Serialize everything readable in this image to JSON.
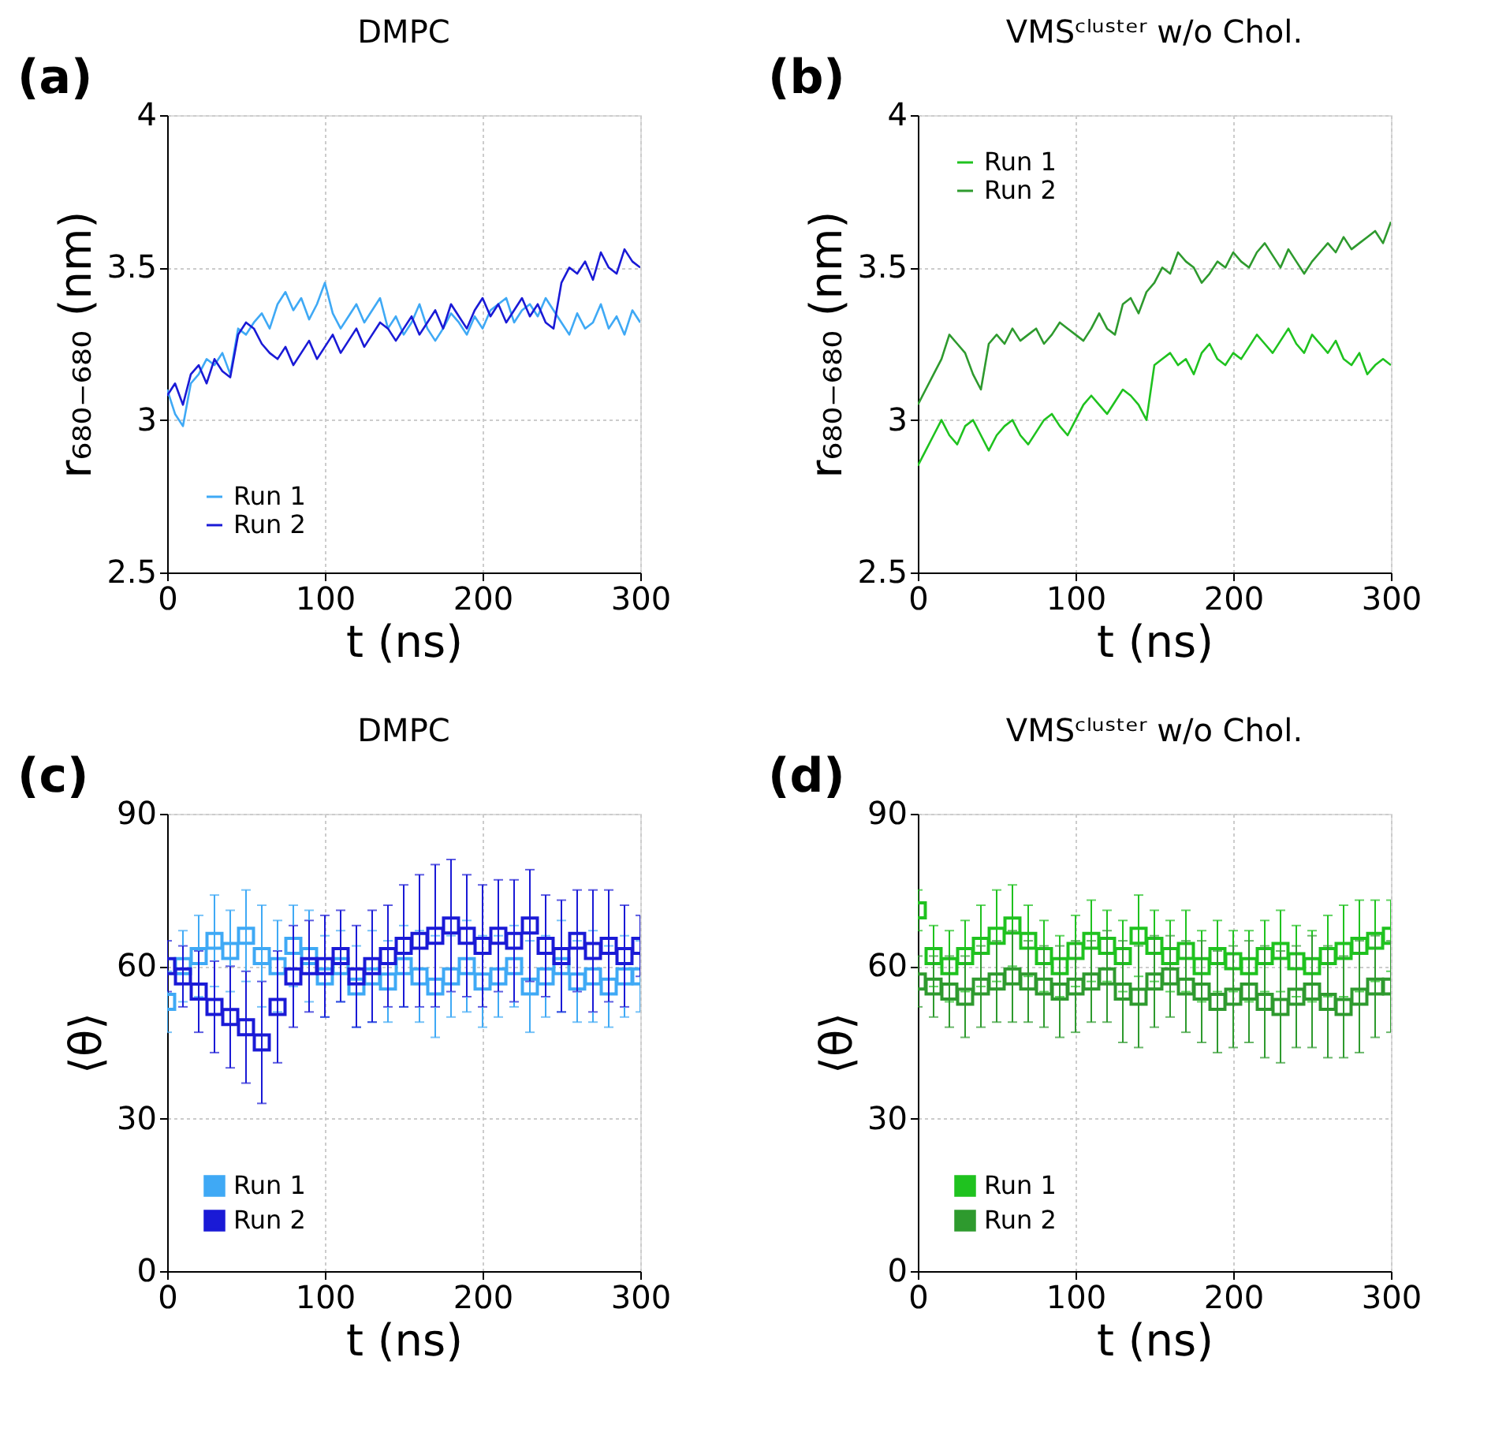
{
  "chart_data": [
    {
      "type": "line",
      "title": "DMPC",
      "xlabel": "t (ns)",
      "ylabel": "r₆₈₀₋₆₈₀ (nm)",
      "annotations": [
        "(a)"
      ],
      "xlim": [
        0,
        300
      ],
      "xticks": [
        0,
        100,
        200,
        300
      ],
      "ylim": [
        2.5,
        4
      ],
      "yticks": [
        2.5,
        3,
        3.5,
        4
      ],
      "grid": true,
      "legend": "bottom left",
      "line_style": "solid",
      "x": [
        0,
        5,
        10,
        15,
        20,
        25,
        30,
        35,
        40,
        45,
        50,
        55,
        60,
        65,
        70,
        75,
        80,
        85,
        90,
        95,
        100,
        105,
        110,
        115,
        120,
        125,
        130,
        135,
        140,
        145,
        150,
        155,
        160,
        165,
        170,
        175,
        180,
        185,
        190,
        195,
        200,
        205,
        210,
        215,
        220,
        225,
        230,
        235,
        240,
        245,
        250,
        255,
        260,
        265,
        270,
        275,
        280,
        285,
        290,
        295,
        300
      ],
      "series": [
        {
          "name": "Run 1",
          "color": "#3fa9f5",
          "values": [
            3.1,
            3.02,
            2.98,
            3.12,
            3.15,
            3.2,
            3.18,
            3.22,
            3.15,
            3.3,
            3.28,
            3.32,
            3.35,
            3.3,
            3.38,
            3.42,
            3.36,
            3.4,
            3.33,
            3.38,
            3.45,
            3.35,
            3.3,
            3.34,
            3.38,
            3.32,
            3.36,
            3.4,
            3.3,
            3.34,
            3.28,
            3.32,
            3.38,
            3.3,
            3.26,
            3.3,
            3.35,
            3.32,
            3.28,
            3.34,
            3.3,
            3.36,
            3.38,
            3.4,
            3.32,
            3.36,
            3.38,
            3.34,
            3.4,
            3.36,
            3.32,
            3.28,
            3.35,
            3.3,
            3.32,
            3.38,
            3.3,
            3.34,
            3.28,
            3.36,
            3.32
          ]
        },
        {
          "name": "Run 2",
          "color": "#1a1ad6",
          "values": [
            3.08,
            3.12,
            3.05,
            3.15,
            3.18,
            3.12,
            3.2,
            3.16,
            3.14,
            3.28,
            3.32,
            3.3,
            3.25,
            3.22,
            3.2,
            3.24,
            3.18,
            3.22,
            3.26,
            3.2,
            3.24,
            3.28,
            3.22,
            3.26,
            3.3,
            3.24,
            3.28,
            3.32,
            3.3,
            3.26,
            3.3,
            3.34,
            3.28,
            3.32,
            3.36,
            3.3,
            3.38,
            3.34,
            3.3,
            3.36,
            3.4,
            3.34,
            3.38,
            3.32,
            3.36,
            3.4,
            3.34,
            3.38,
            3.32,
            3.3,
            3.45,
            3.5,
            3.48,
            3.52,
            3.46,
            3.55,
            3.5,
            3.48,
            3.56,
            3.52,
            3.5
          ]
        }
      ]
    },
    {
      "type": "line",
      "title": "VMSᶜˡᵘˢᵗᵉʳ w/o Chol.",
      "xlabel": "t (ns)",
      "ylabel": "r₆₈₀₋₆₈₀ (nm)",
      "annotations": [
        "(b)"
      ],
      "xlim": [
        0,
        300
      ],
      "xticks": [
        0,
        100,
        200,
        300
      ],
      "ylim": [
        2.5,
        4
      ],
      "yticks": [
        2.5,
        3,
        3.5,
        4
      ],
      "grid": true,
      "legend": "top left",
      "line_style": "solid",
      "x": [
        0,
        5,
        10,
        15,
        20,
        25,
        30,
        35,
        40,
        45,
        50,
        55,
        60,
        65,
        70,
        75,
        80,
        85,
        90,
        95,
        100,
        105,
        110,
        115,
        120,
        125,
        130,
        135,
        140,
        145,
        150,
        155,
        160,
        165,
        170,
        175,
        180,
        185,
        190,
        195,
        200,
        205,
        210,
        215,
        220,
        225,
        230,
        235,
        240,
        245,
        250,
        255,
        260,
        265,
        270,
        275,
        280,
        285,
        290,
        295,
        300
      ],
      "series": [
        {
          "name": "Run 1",
          "color": "#1fc21f",
          "values": [
            2.85,
            2.9,
            2.95,
            3.0,
            2.95,
            2.92,
            2.98,
            3.0,
            2.95,
            2.9,
            2.95,
            2.98,
            3.0,
            2.95,
            2.92,
            2.96,
            3.0,
            3.02,
            2.98,
            2.95,
            3.0,
            3.05,
            3.08,
            3.05,
            3.02,
            3.06,
            3.1,
            3.08,
            3.05,
            3.0,
            3.18,
            3.2,
            3.22,
            3.18,
            3.2,
            3.15,
            3.22,
            3.25,
            3.2,
            3.18,
            3.22,
            3.2,
            3.24,
            3.28,
            3.25,
            3.22,
            3.26,
            3.3,
            3.25,
            3.22,
            3.28,
            3.25,
            3.22,
            3.26,
            3.2,
            3.18,
            3.22,
            3.15,
            3.18,
            3.2,
            3.18
          ]
        },
        {
          "name": "Run 2",
          "color": "#2e9a2e",
          "values": [
            3.05,
            3.1,
            3.15,
            3.2,
            3.28,
            3.25,
            3.22,
            3.15,
            3.1,
            3.25,
            3.28,
            3.25,
            3.3,
            3.26,
            3.28,
            3.3,
            3.25,
            3.28,
            3.32,
            3.3,
            3.28,
            3.26,
            3.3,
            3.35,
            3.3,
            3.28,
            3.38,
            3.4,
            3.35,
            3.42,
            3.45,
            3.5,
            3.48,
            3.55,
            3.52,
            3.5,
            3.45,
            3.48,
            3.52,
            3.5,
            3.55,
            3.52,
            3.5,
            3.55,
            3.58,
            3.54,
            3.5,
            3.56,
            3.52,
            3.48,
            3.52,
            3.55,
            3.58,
            3.55,
            3.6,
            3.56,
            3.58,
            3.6,
            3.62,
            3.58,
            3.65
          ]
        }
      ]
    },
    {
      "type": "scatter",
      "title": "DMPC",
      "xlabel": "t (ns)",
      "ylabel": "⟨θ⟩",
      "annotations": [
        "(c)"
      ],
      "xlim": [
        0,
        300
      ],
      "xticks": [
        0,
        100,
        200,
        300
      ],
      "ylim": [
        0,
        90
      ],
      "yticks": [
        0,
        30,
        60,
        90
      ],
      "grid": true,
      "legend": "bottom left",
      "marker": "square",
      "x": [
        0,
        10,
        20,
        30,
        40,
        50,
        60,
        70,
        80,
        90,
        100,
        110,
        120,
        130,
        140,
        150,
        160,
        170,
        180,
        190,
        200,
        210,
        220,
        230,
        240,
        250,
        260,
        270,
        280,
        290,
        300
      ],
      "series": [
        {
          "name": "Run 1",
          "color": "#3fa9f5",
          "values": [
            53,
            60,
            62,
            65,
            63,
            66,
            62,
            60,
            64,
            62,
            58,
            60,
            56,
            58,
            57,
            60,
            58,
            56,
            58,
            60,
            57,
            58,
            60,
            56,
            58,
            60,
            57,
            58,
            56,
            58,
            58
          ],
          "errors": [
            6,
            7,
            8,
            9,
            8,
            9,
            10,
            9,
            8,
            9,
            8,
            7,
            8,
            9,
            8,
            8,
            9,
            10,
            8,
            9,
            9,
            8,
            8,
            9,
            8,
            9,
            8,
            9,
            8,
            8,
            7
          ]
        },
        {
          "name": "Run 2",
          "color": "#1a1ad6",
          "values": [
            60,
            58,
            55,
            52,
            50,
            48,
            45,
            52,
            58,
            60,
            60,
            62,
            58,
            60,
            62,
            64,
            65,
            66,
            68,
            66,
            64,
            66,
            65,
            68,
            64,
            62,
            65,
            63,
            64,
            62,
            64
          ],
          "errors": [
            5,
            6,
            8,
            9,
            10,
            11,
            12,
            11,
            10,
            9,
            10,
            9,
            10,
            11,
            10,
            12,
            13,
            14,
            13,
            12,
            12,
            11,
            12,
            11,
            10,
            11,
            10,
            12,
            11,
            10,
            6
          ]
        }
      ]
    },
    {
      "type": "scatter",
      "title": "VMSᶜˡᵘˢᵗᵉʳ w/o Chol.",
      "xlabel": "t (ns)",
      "ylabel": "⟨θ⟩",
      "annotations": [
        "(d)"
      ],
      "xlim": [
        0,
        300
      ],
      "xticks": [
        0,
        100,
        200,
        300
      ],
      "ylim": [
        0,
        90
      ],
      "yticks": [
        0,
        30,
        60,
        90
      ],
      "grid": true,
      "legend": "bottom left",
      "marker": "square",
      "x": [
        0,
        10,
        20,
        30,
        40,
        50,
        60,
        70,
        80,
        90,
        100,
        110,
        120,
        130,
        140,
        150,
        160,
        170,
        180,
        190,
        200,
        210,
        220,
        230,
        240,
        250,
        260,
        270,
        280,
        290,
        300
      ],
      "series": [
        {
          "name": "Run 1",
          "color": "#1fc21f",
          "values": [
            71,
            62,
            60,
            62,
            64,
            66,
            68,
            65,
            62,
            60,
            63,
            65,
            64,
            62,
            66,
            64,
            62,
            63,
            60,
            62,
            61,
            60,
            62,
            63,
            61,
            60,
            62,
            63,
            64,
            65,
            66
          ],
          "errors": [
            4,
            6,
            7,
            7,
            8,
            9,
            8,
            7,
            7,
            6,
            7,
            8,
            7,
            7,
            8,
            7,
            7,
            8,
            7,
            7,
            6,
            7,
            7,
            8,
            7,
            7,
            8,
            9,
            9,
            8,
            7
          ]
        },
        {
          "name": "Run 2",
          "color": "#2e9a2e",
          "values": [
            57,
            56,
            55,
            54,
            56,
            57,
            58,
            57,
            56,
            55,
            56,
            57,
            58,
            55,
            54,
            57,
            58,
            56,
            55,
            53,
            54,
            55,
            53,
            52,
            54,
            55,
            53,
            52,
            54,
            56,
            56
          ],
          "errors": [
            5,
            6,
            7,
            8,
            8,
            8,
            9,
            8,
            8,
            9,
            9,
            8,
            9,
            10,
            10,
            9,
            8,
            9,
            10,
            10,
            10,
            10,
            11,
            11,
            10,
            11,
            11,
            10,
            11,
            10,
            9
          ]
        }
      ]
    }
  ]
}
